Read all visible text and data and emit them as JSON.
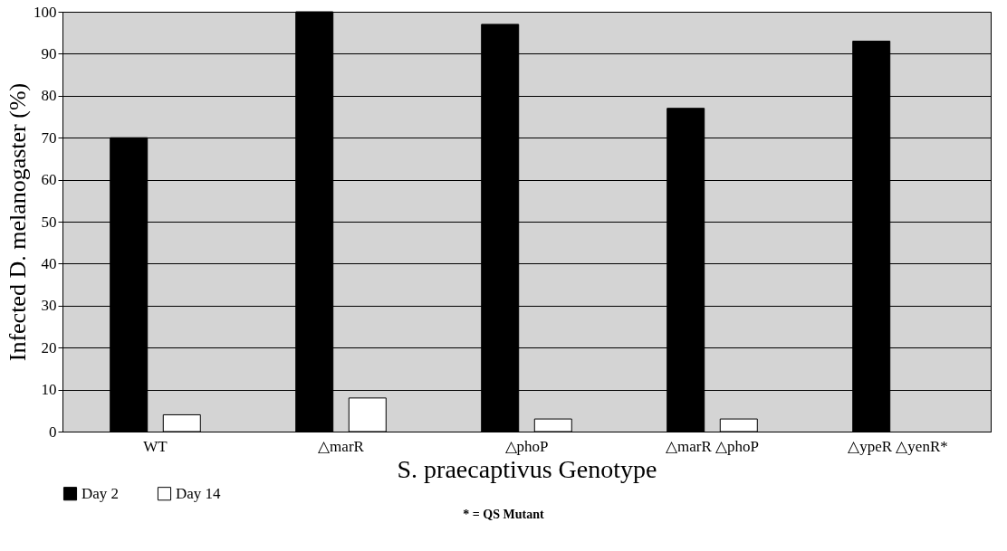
{
  "chart_data": {
    "type": "bar",
    "xlabel": "S. praecaptivus Genotype",
    "ylabel": "Infected D. melanogaster (%)",
    "categories": [
      "WT",
      "△marR",
      "△phoP",
      "△marR △phoP",
      "△ypeR △yenR*"
    ],
    "series": [
      {
        "name": "Day 2",
        "color": "#000000",
        "values": [
          70,
          100,
          97,
          77,
          93
        ]
      },
      {
        "name": "Day 14",
        "color": "#ffffff",
        "values": [
          4,
          8,
          3,
          3,
          null
        ]
      }
    ],
    "ylim": [
      0,
      100
    ],
    "yticks": [
      0,
      10,
      20,
      30,
      40,
      50,
      60,
      70,
      80,
      90,
      100
    ],
    "grid": "y",
    "legend": "bottom",
    "annotations": [
      "* = QS Mutant"
    ]
  }
}
